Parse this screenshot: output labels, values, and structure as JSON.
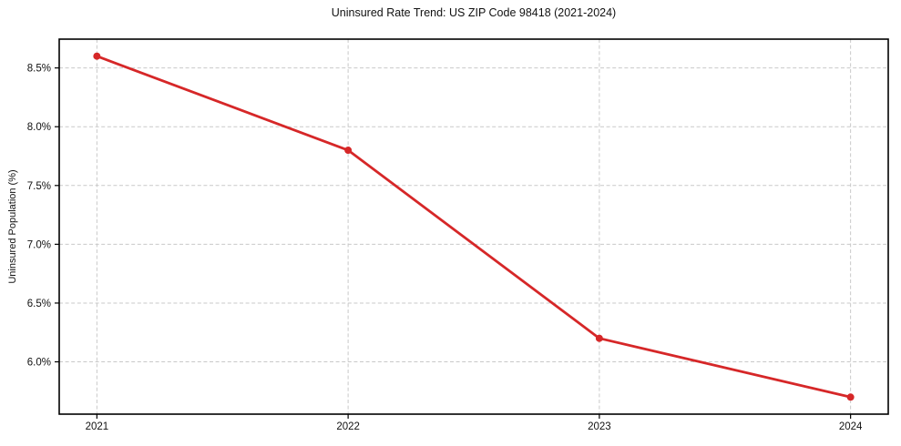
{
  "chart_data": {
    "type": "line",
    "title": "Uninsured Rate Trend: US ZIP Code 98418 (2021-2024)",
    "xlabel": "",
    "ylabel": "Uninsured Population (%)",
    "x": [
      2021,
      2022,
      2023,
      2024
    ],
    "values": [
      8.6,
      7.8,
      6.2,
      5.7
    ],
    "xtick_labels": [
      "2021",
      "2022",
      "2023",
      "2024"
    ],
    "yticks": [
      6.0,
      6.5,
      7.0,
      7.5,
      8.0,
      8.5
    ],
    "ytick_labels": [
      "6.0%",
      "6.5%",
      "7.0%",
      "7.5%",
      "8.0%",
      "8.5%"
    ],
    "xlim": [
      2020.85,
      2024.15
    ],
    "ylim": [
      5.555,
      8.745
    ],
    "grid": true,
    "grid_style": "dashed",
    "legend": "none",
    "line_color": "#d62728",
    "marker": "circle",
    "grid_color": "#c9c9c9",
    "spine_color": "#000000"
  }
}
